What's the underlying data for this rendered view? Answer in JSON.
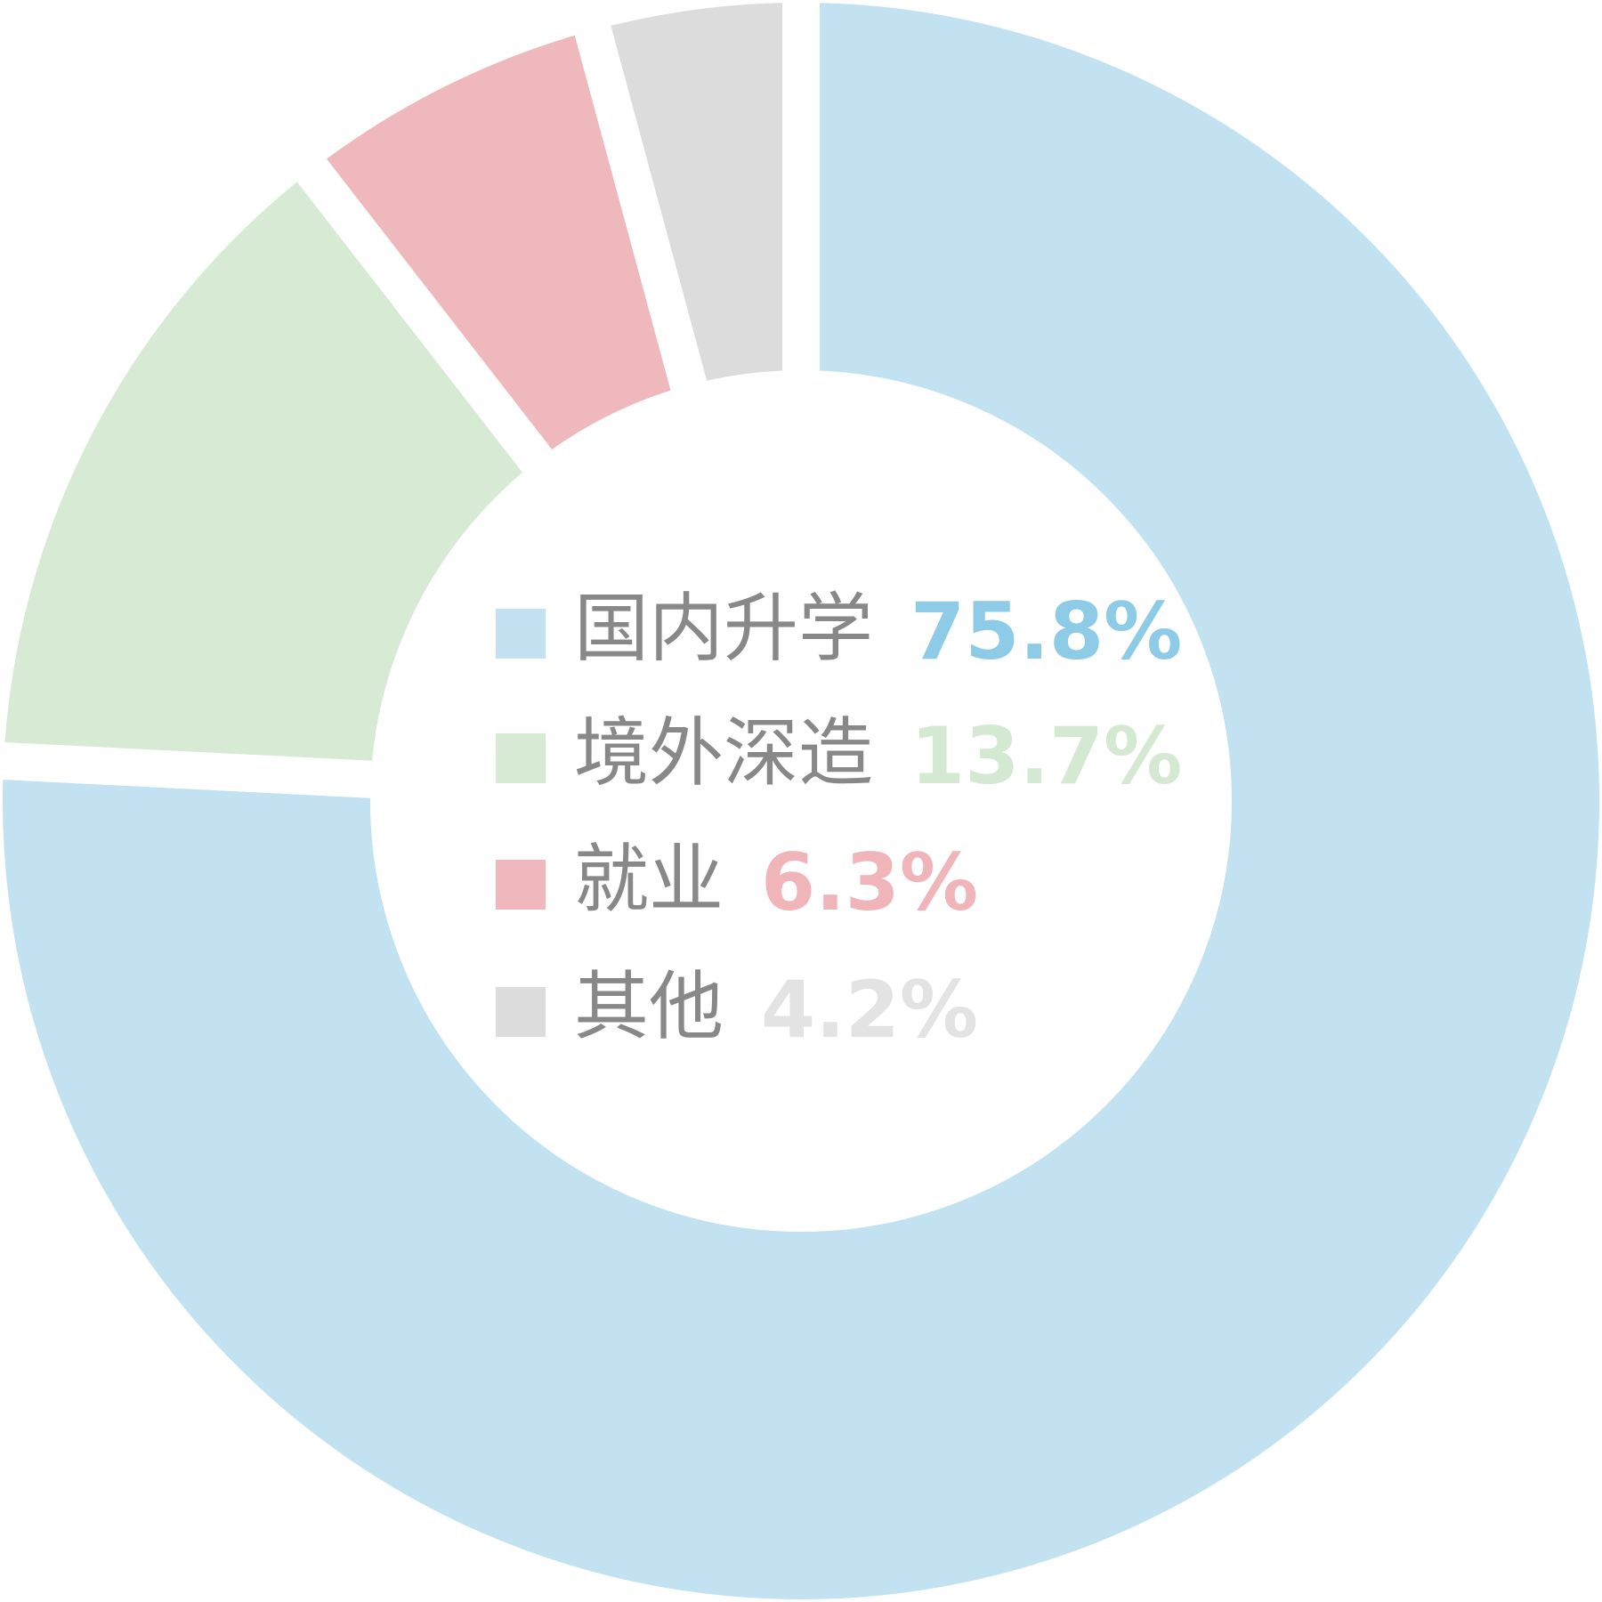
{
  "chart_data": {
    "type": "donut",
    "categories": [
      "国内升学",
      "境外深造",
      "就业",
      "其他"
    ],
    "values": [
      75.8,
      13.7,
      6.3,
      4.2
    ],
    "value_labels": [
      "75.8%",
      "13.7%",
      "6.3%",
      "4.2%"
    ],
    "colors": [
      "#c2e2f1",
      "#d6ead4",
      "#efb8bc",
      "#dcdcdc"
    ],
    "label_colors": [
      "#8ecbe6",
      "#d3e9d1",
      "#efb5b9",
      "#e3e3e3"
    ]
  }
}
